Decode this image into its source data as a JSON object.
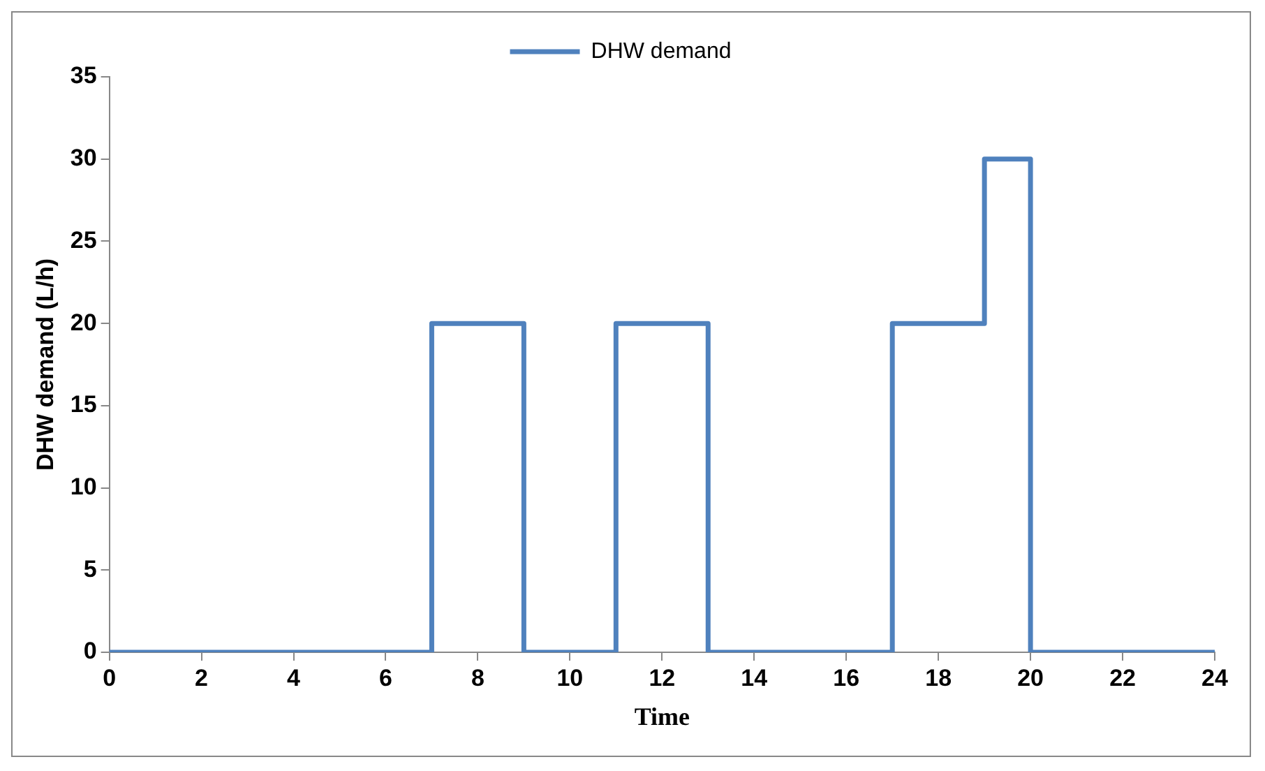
{
  "chart_data": {
    "type": "step",
    "xlabel": "Time",
    "ylabel": "DHW demand (L/h)",
    "x": [
      0,
      7,
      9,
      11,
      13,
      17,
      19,
      20,
      24
    ],
    "series": [
      {
        "name": "DHW demand",
        "color": "#4f81bd",
        "values": [
          0,
          20,
          0,
          20,
          0,
          20,
          30,
          0,
          0
        ]
      }
    ],
    "xlim": [
      0,
      24
    ],
    "xticks": [
      0,
      2,
      4,
      6,
      8,
      10,
      12,
      14,
      16,
      18,
      20,
      22,
      24
    ],
    "ylim": [
      0,
      35
    ],
    "yticks": [
      0,
      5,
      10,
      15,
      20,
      25,
      30,
      35
    ],
    "grid": false,
    "legend": "top",
    "marker": "none",
    "line_style": "solid"
  }
}
